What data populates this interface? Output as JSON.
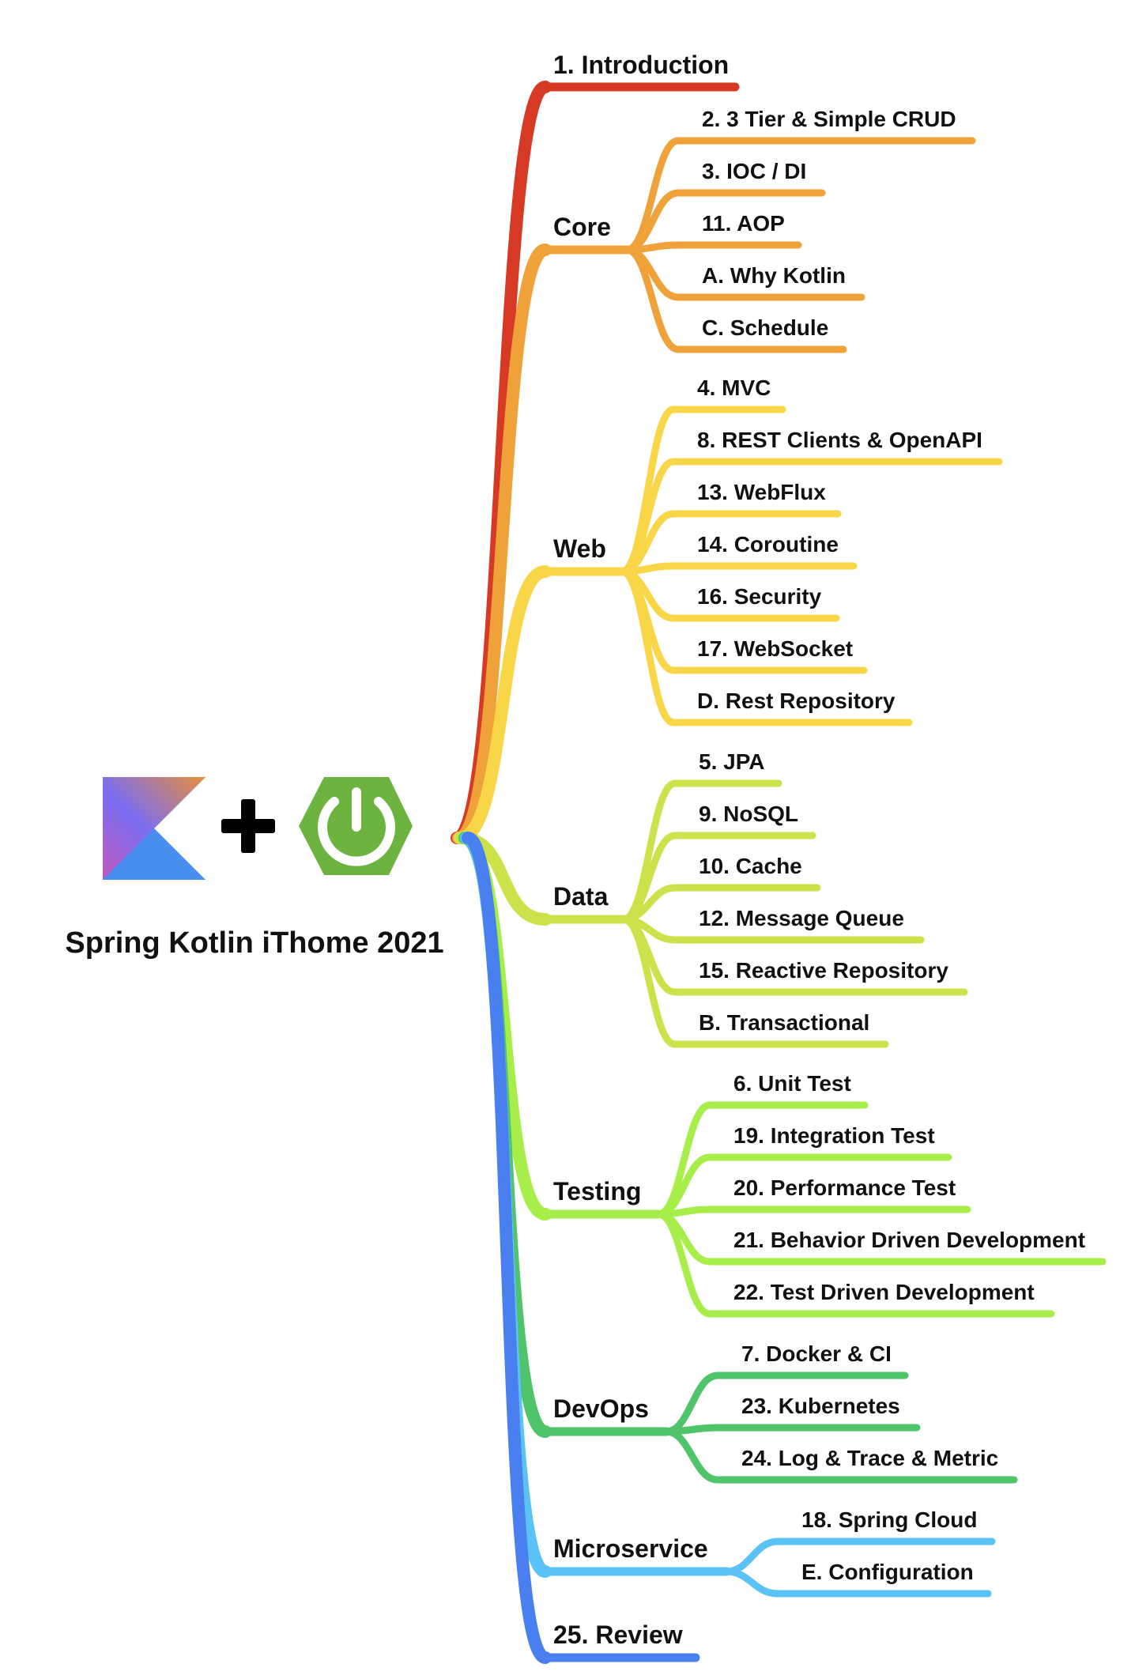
{
  "title": "Spring Kotlin iThome 2021",
  "logos": [
    {
      "name": "Kotlin",
      "kind": "kotlin-logo-icon"
    },
    {
      "name": "plus",
      "kind": "plus-icon"
    },
    {
      "name": "Spring",
      "kind": "spring-power-logo-icon",
      "color": "#6db33f"
    }
  ],
  "branches": [
    {
      "id": "introduction",
      "label": "1. Introduction",
      "color": "#d63a25",
      "children": []
    },
    {
      "id": "core",
      "label": "Core",
      "color": "#f0a23a",
      "children": [
        "2.  3 Tier & Simple CRUD",
        "3.  IOC / DI",
        "11.  AOP",
        "A.  Why Kotlin",
        "C.  Schedule"
      ]
    },
    {
      "id": "web",
      "label": "Web",
      "color": "#f8d648",
      "children": [
        "4.  MVC",
        "8.  REST Clients & OpenAPI",
        "13.  WebFlux",
        "14.  Coroutine",
        "16.  Security",
        "17.  WebSocket",
        "D.  Rest Repository"
      ]
    },
    {
      "id": "data",
      "label": "Data",
      "color": "#cde24a",
      "children": [
        "5.  JPA",
        "9.  NoSQL",
        "10.  Cache",
        "12.  Message Queue",
        "15.  Reactive Repository",
        "B.  Transactional"
      ]
    },
    {
      "id": "testing",
      "label": "Testing",
      "color": "#a8ee4a",
      "children": [
        "6.  Unit Test",
        "19.  Integration Test",
        "20.  Performance Test",
        "21.  Behavior Driven Development",
        "22.  Test Driven Development"
      ]
    },
    {
      "id": "devops",
      "label": "DevOps",
      "color": "#4fc46a",
      "children": [
        "7.  Docker & CI",
        "23.  Kubernetes",
        "24.  Log & Trace & Metric"
      ]
    },
    {
      "id": "microservice",
      "label": "Microservice",
      "color": "#5ac2f5",
      "children": [
        "18.  Spring Cloud",
        "E.  Configuration"
      ]
    },
    {
      "id": "review",
      "label": "25.  Review",
      "color": "#4a7ff0",
      "children": []
    }
  ]
}
